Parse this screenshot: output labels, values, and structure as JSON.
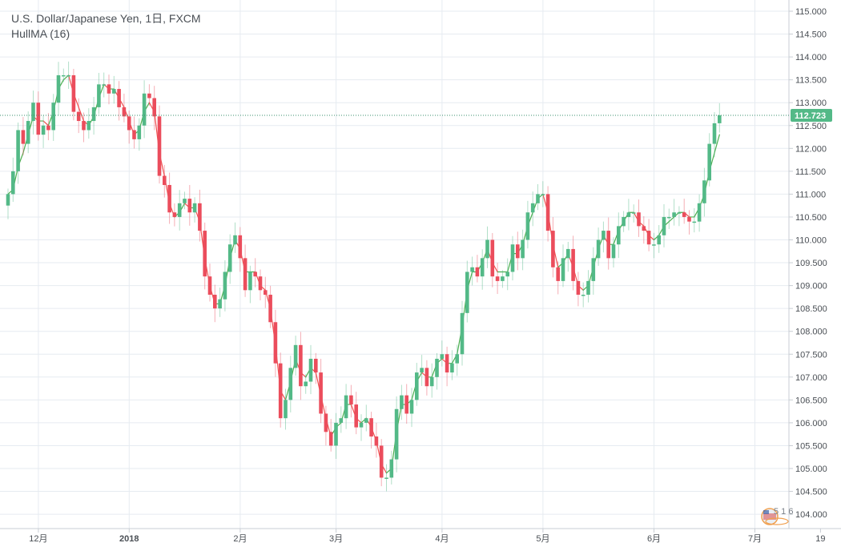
{
  "header": {
    "symbol_title": "U.S. Dollar/Japanese Yen, 1日, FXCM",
    "indicator": "HullMA (16)"
  },
  "price_tag": "112.723",
  "watermark": "5 1 6",
  "colors": {
    "up": "#53b987",
    "down": "#eb4d5c",
    "hma_up": "#4caf50",
    "hma_down": "#f05252",
    "grid": "#e6ebf1",
    "price_line": "#3a8f6e",
    "background": "#ffffff"
  },
  "chart_data": {
    "type": "candlestick",
    "title": "U.S. Dollar/Japanese Yen, 1日, FXCM",
    "indicator": "HullMA (16)",
    "last_price": 112.723,
    "ylim": [
      103.8,
      115.1
    ],
    "y_ticks": [
      "104.000",
      "104.500",
      "105.000",
      "105.500",
      "106.000",
      "106.500",
      "107.000",
      "107.500",
      "108.000",
      "108.500",
      "109.000",
      "109.500",
      "110.000",
      "110.500",
      "111.000",
      "111.500",
      "112.000",
      "112.500",
      "113.000",
      "113.500",
      "114.000",
      "114.500",
      "115.000"
    ],
    "x_ticks": [
      {
        "label": "12月",
        "index": 3
      },
      {
        "label": "2018",
        "index": 21
      },
      {
        "label": "2月",
        "index": 43
      },
      {
        "label": "3月",
        "index": 62
      },
      {
        "label": "4月",
        "index": 83
      },
      {
        "label": "5月",
        "index": 103
      },
      {
        "label": "6月",
        "index": 125
      },
      {
        "label": "7月",
        "index": 145
      },
      {
        "label": "19",
        "index": 158
      }
    ],
    "grid": true,
    "closes": [
      111.0,
      111.5,
      112.4,
      112.1,
      112.6,
      113.0,
      112.3,
      112.5,
      112.4,
      113.0,
      113.6,
      113.6,
      113.6,
      112.8,
      112.6,
      112.4,
      112.6,
      112.9,
      113.4,
      113.4,
      113.2,
      113.3,
      112.9,
      112.7,
      112.4,
      112.2,
      112.5,
      113.2,
      113.1,
      112.7,
      111.4,
      111.2,
      110.6,
      110.5,
      110.8,
      110.9,
      110.6,
      110.8,
      110.2,
      109.2,
      108.8,
      108.5,
      108.7,
      109.3,
      109.9,
      110.1,
      109.6,
      108.9,
      109.3,
      109.2,
      108.9,
      108.8,
      108.2,
      107.3,
      106.1,
      106.5,
      107.2,
      107.7,
      106.8,
      106.9,
      107.4,
      107.1,
      106.2,
      105.8,
      105.5,
      106.0,
      106.1,
      106.6,
      106.4,
      105.9,
      106.0,
      106.1,
      105.7,
      105.5,
      104.8,
      104.8,
      105.2,
      106.3,
      106.6,
      106.2,
      106.5,
      107.1,
      107.2,
      106.8,
      107.0,
      107.4,
      107.5,
      107.1,
      107.3,
      107.5,
      108.4,
      109.3,
      109.4,
      109.2,
      109.6,
      110.0,
      109.2,
      109.1,
      109.2,
      109.3,
      109.9,
      109.6,
      110.0,
      110.6,
      110.8,
      111.0,
      111.0,
      110.2,
      109.4,
      109.1,
      109.6,
      109.8,
      109.1,
      108.8,
      108.8,
      109.1,
      109.6,
      110.0,
      110.2,
      109.6,
      109.9,
      110.3,
      110.5,
      110.6,
      110.6,
      110.3,
      110.2,
      109.9,
      109.9,
      110.1,
      110.5,
      110.5,
      110.6,
      110.6,
      110.5,
      110.4,
      110.4,
      110.8,
      111.3,
      112.1,
      112.55,
      112.723
    ],
    "hull_ma": [
      111.0,
      111.1,
      111.6,
      111.9,
      112.3,
      112.7,
      112.6,
      112.6,
      112.5,
      112.8,
      113.3,
      113.5,
      113.6,
      113.2,
      112.9,
      112.6,
      112.5,
      112.7,
      113.1,
      113.4,
      113.3,
      113.3,
      113.1,
      112.9,
      112.6,
      112.3,
      112.4,
      112.8,
      113.0,
      112.8,
      111.9,
      111.4,
      110.8,
      110.5,
      110.6,
      110.8,
      110.7,
      110.7,
      110.4,
      109.6,
      109.0,
      108.6,
      108.6,
      109.0,
      109.6,
      110.0,
      109.8,
      109.3,
      109.3,
      109.3,
      109.0,
      108.9,
      108.5,
      107.7,
      106.7,
      106.5,
      106.9,
      107.4,
      107.1,
      107.0,
      107.2,
      107.1,
      106.6,
      106.1,
      105.7,
      105.9,
      106.0,
      106.4,
      106.4,
      106.1,
      106.0,
      106.1,
      105.9,
      105.6,
      105.1,
      104.9,
      105.0,
      105.8,
      106.4,
      106.4,
      106.5,
      106.9,
      107.1,
      107.0,
      107.0,
      107.3,
      107.4,
      107.3,
      107.3,
      107.5,
      108.1,
      108.9,
      109.3,
      109.3,
      109.5,
      109.8,
      109.5,
      109.3,
      109.3,
      109.3,
      109.7,
      109.7,
      109.9,
      110.3,
      110.6,
      110.9,
      111.0,
      110.6,
      109.9,
      109.4,
      109.5,
      109.7,
      109.4,
      109.0,
      108.9,
      109.0,
      109.4,
      109.8,
      110.1,
      109.9,
      109.9,
      110.2,
      110.4,
      110.6,
      110.6,
      110.4,
      110.3,
      110.1,
      110.0,
      110.1,
      110.3,
      110.4,
      110.5,
      110.6,
      110.6,
      110.5,
      110.5,
      110.7,
      111.0,
      111.5,
      111.9,
      112.3
    ]
  }
}
